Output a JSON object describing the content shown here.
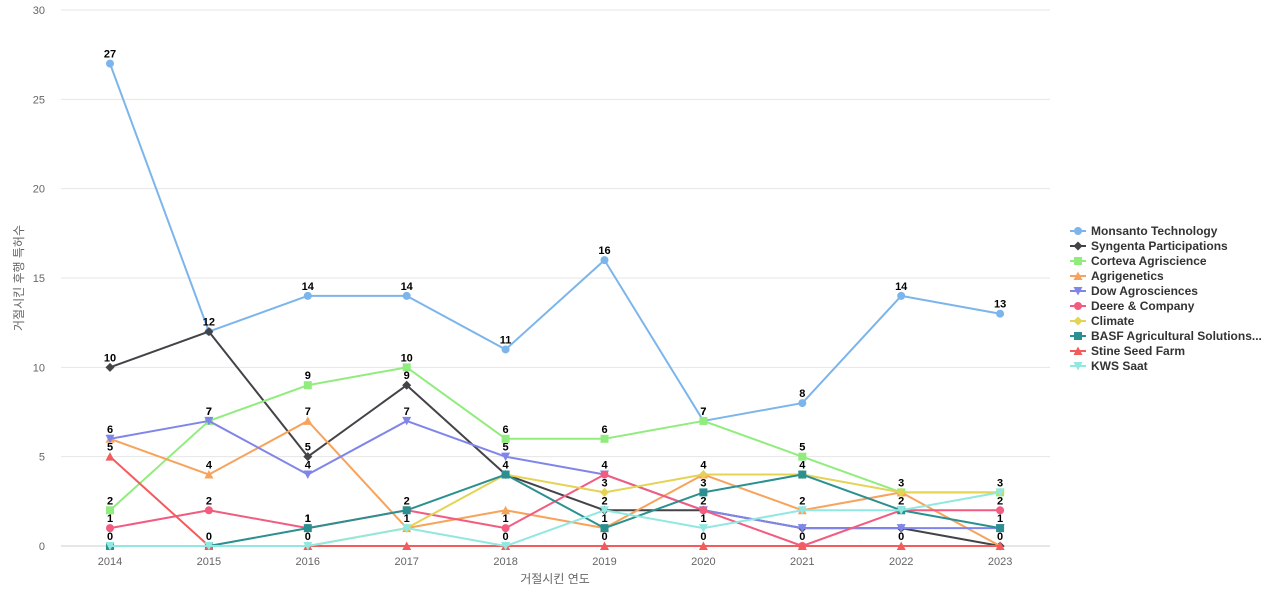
{
  "chart_data": {
    "type": "line",
    "xlabel": "거절시킨 연도",
    "ylabel": "거절시킨 후행 특허수",
    "x": [
      "2014",
      "2015",
      "2016",
      "2017",
      "2018",
      "2019",
      "2020",
      "2021",
      "2022",
      "2023"
    ],
    "ylim": [
      0,
      30
    ],
    "yticks": [
      0,
      5,
      10,
      15,
      20,
      25,
      30
    ],
    "grid": "horizontal",
    "legend_position": "right",
    "series": [
      {
        "name": "Monsanto Technology",
        "color": "#7cb5ec",
        "marker": "circle",
        "values": [
          27,
          12,
          14,
          14,
          11,
          16,
          7,
          8,
          14,
          13
        ],
        "labeled": [
          27,
          12,
          14,
          14,
          11,
          16,
          7,
          8,
          14,
          13
        ]
      },
      {
        "name": "Syngenta Participations",
        "color": "#434348",
        "marker": "diamond",
        "values": [
          10,
          12,
          5,
          9,
          4,
          2,
          2,
          1,
          1,
          0
        ],
        "labeled": [
          10,
          null,
          5,
          9,
          null,
          null,
          null,
          null,
          null,
          null
        ]
      },
      {
        "name": "Corteva Agriscience",
        "color": "#90ed7d",
        "marker": "square",
        "values": [
          2,
          7,
          9,
          10,
          6,
          6,
          7,
          5,
          3,
          3
        ],
        "labeled": [
          2,
          7,
          9,
          10,
          6,
          6,
          7,
          5,
          3,
          3
        ]
      },
      {
        "name": "Agrigenetics",
        "color": "#f7a35c",
        "marker": "triangle",
        "values": [
          6,
          4,
          7,
          1,
          2,
          1,
          4,
          2,
          3,
          0
        ],
        "labeled": [
          null,
          4,
          7,
          null,
          null,
          null,
          4,
          2,
          null,
          null
        ]
      },
      {
        "name": "Dow Agrosciences",
        "color": "#8085e9",
        "marker": "triangle-down",
        "values": [
          6,
          7,
          4,
          7,
          5,
          4,
          2,
          1,
          1,
          1
        ],
        "labeled": [
          6,
          7,
          4,
          7,
          5,
          4,
          null,
          null,
          null,
          null
        ]
      },
      {
        "name": "Deere & Company",
        "color": "#f15c80",
        "marker": "circle",
        "values": [
          1,
          2,
          1,
          2,
          1,
          4,
          2,
          0,
          2,
          2
        ],
        "labeled": [
          1,
          2,
          1,
          2,
          1,
          null,
          2,
          null,
          2,
          2
        ]
      },
      {
        "name": "Climate",
        "color": "#e4d354",
        "marker": "diamond",
        "values": [
          0,
          0,
          0,
          1,
          4,
          3,
          4,
          4,
          3,
          3
        ],
        "labeled": [
          null,
          null,
          null,
          null,
          null,
          3,
          null,
          null,
          null,
          null
        ]
      },
      {
        "name": "BASF Agricultural Solutions...",
        "color": "#2b908f",
        "marker": "square",
        "values": [
          0,
          0,
          1,
          2,
          4,
          1,
          3,
          4,
          2,
          1
        ],
        "labeled": [
          null,
          null,
          1,
          null,
          4,
          1,
          3,
          4,
          null,
          1
        ]
      },
      {
        "name": "Stine Seed Farm",
        "color": "#f45b5b",
        "marker": "triangle",
        "values": [
          5,
          0,
          0,
          0,
          0,
          0,
          0,
          0,
          0,
          0
        ],
        "labeled": [
          5,
          null,
          null,
          null,
          null,
          0,
          0,
          0,
          0,
          0
        ]
      },
      {
        "name": "KWS Saat",
        "color": "#91e8e1",
        "marker": "triangle-down",
        "values": [
          0,
          0,
          0,
          1,
          0,
          2,
          1,
          2,
          2,
          3
        ],
        "labeled": [
          0,
          0,
          0,
          1,
          0,
          2,
          1,
          null,
          null,
          null
        ]
      }
    ]
  }
}
